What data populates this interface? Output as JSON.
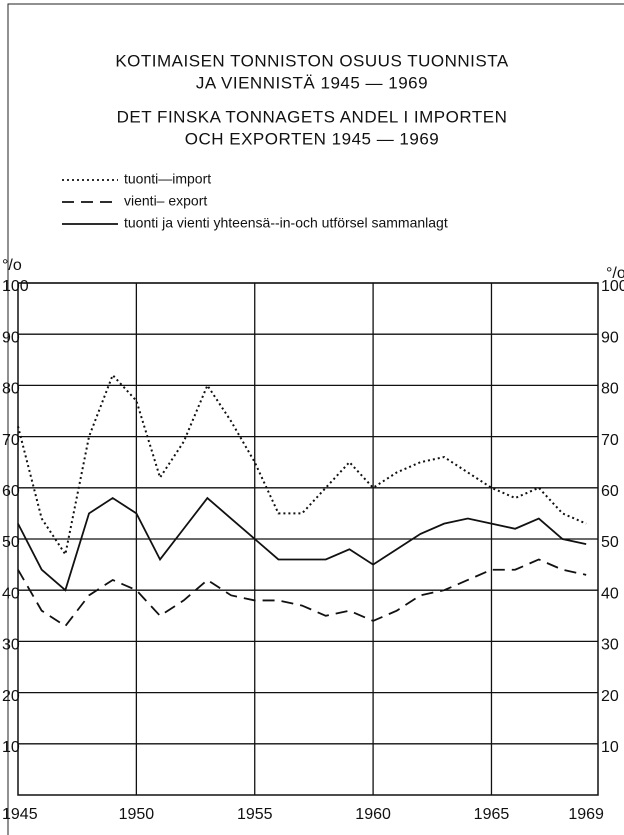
{
  "chart_data": {
    "type": "line",
    "title": [
      "KOTIMAISEN TONNISTON OSUUS TUONNISTA",
      "JA VIENNISTÄ 1945 — 1969"
    ],
    "subtitle": [
      "DET FINSKA TONNAGETS ANDEL I IMPORTEN",
      "OCH EXPORTEN 1945 — 1969"
    ],
    "y_unit": "°/o",
    "x": [
      1945,
      1946,
      1947,
      1948,
      1949,
      1950,
      1951,
      1952,
      1953,
      1954,
      1955,
      1956,
      1957,
      1958,
      1959,
      1960,
      1961,
      1962,
      1963,
      1964,
      1965,
      1966,
      1967,
      1968,
      1969
    ],
    "series": [
      {
        "name": "tuonti—import",
        "color": "#111111",
        "dash": "dotted",
        "values": [
          72,
          54,
          47,
          70,
          82,
          77,
          62,
          69,
          80,
          73,
          65,
          55,
          55,
          60,
          65,
          60,
          63,
          65,
          66,
          63,
          60,
          58,
          60,
          55,
          53
        ]
      },
      {
        "name": "vienti– export",
        "color": "#111111",
        "dash": "dashed",
        "values": [
          44,
          36,
          33,
          39,
          42,
          40,
          35,
          38,
          42,
          39,
          38,
          38,
          37,
          35,
          36,
          34,
          36,
          39,
          40,
          42,
          44,
          44,
          46,
          44,
          43
        ]
      },
      {
        "name": "tuonti ja vienti yhteensä--in-och utförsel sammanlagt",
        "color": "#111111",
        "dash": "solid",
        "values": [
          53,
          44,
          40,
          55,
          58,
          55,
          46,
          52,
          58,
          54,
          50,
          46,
          46,
          46,
          48,
          45,
          48,
          51,
          53,
          54,
          53,
          52,
          54,
          50,
          49
        ]
      }
    ],
    "xlim": [
      1945,
      1969.5
    ],
    "xticks": [
      1945,
      1950,
      1955,
      1960,
      1965,
      1969
    ],
    "ylim": [
      0,
      100
    ],
    "yticks": [
      10,
      20,
      30,
      40,
      50,
      60,
      70,
      80,
      90,
      100
    ],
    "grid": true
  }
}
